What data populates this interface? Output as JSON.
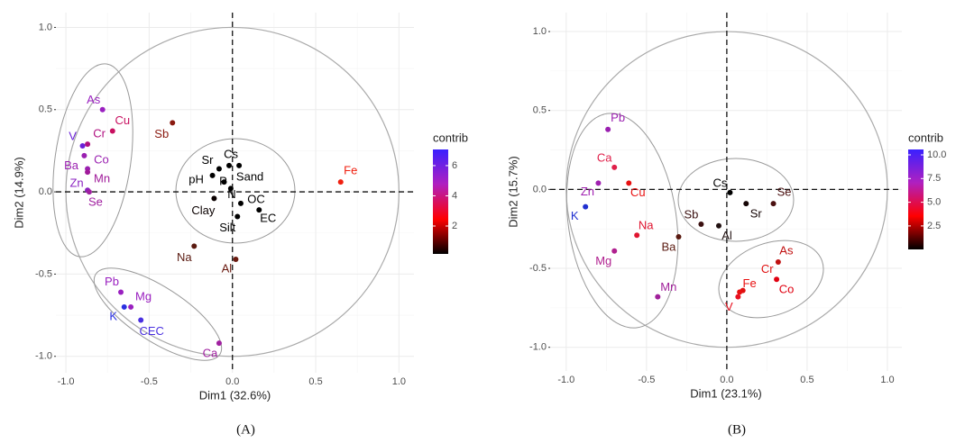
{
  "chart_data": [
    {
      "type": "scatter",
      "caption": "(A)",
      "x_label": "Dim1 (32.6%)",
      "y_label": "Dim2 (14.9%)",
      "xlim": [
        -1.06,
        1.09
      ],
      "ylim": [
        -1.1,
        1.09
      ],
      "xticks": [
        {
          "value": -1,
          "label": "-1.0"
        },
        -0.5,
        {
          "value": 0,
          "label": "0.0"
        },
        0.5,
        {
          "value": 1,
          "label": "1.0"
        }
      ],
      "yticks": [
        {
          "value": -1,
          "label": "-1.0"
        },
        -0.5,
        {
          "value": 0,
          "label": "0.0"
        },
        0.5,
        {
          "value": 1,
          "label": "1.0"
        }
      ],
      "labels": [
        "As",
        "Cu",
        "Cr",
        "V",
        "Co",
        "Ba",
        "Mn",
        "Zn",
        "Se",
        "Sb",
        "Fe",
        "Cs",
        "Sr",
        "Sand",
        "pH",
        "P",
        "N",
        "Clay",
        "OC",
        "EC",
        "Silt",
        "Na",
        "Al",
        "Pb",
        "Mg",
        "K",
        "CEC",
        "Ca"
      ],
      "x": [
        -0.78,
        -0.72,
        -0.87,
        -0.9,
        -0.89,
        -0.87,
        -0.87,
        -0.87,
        -0.86,
        -0.36,
        0.65,
        -0.02,
        -0.08,
        0.04,
        -0.12,
        -0.05,
        -0.01,
        -0.11,
        0.05,
        0.16,
        0.03,
        -0.23,
        0.02,
        -0.67,
        -0.61,
        -0.65,
        -0.55,
        -0.08
      ],
      "values": [
        0.5,
        0.37,
        0.29,
        0.28,
        0.22,
        0.14,
        0.12,
        0.01,
        0.0,
        0.42,
        0.06,
        0.16,
        0.14,
        0.16,
        0.1,
        0.06,
        0.02,
        -0.04,
        -0.07,
        -0.11,
        -0.15,
        -0.33,
        -0.41,
        -0.61,
        -0.7,
        -0.7,
        -0.78,
        -0.92
      ],
      "colors": [
        "#9a20c0",
        "#c81060",
        "#b01080",
        "#6a20d8",
        "#9a20b0",
        "#9a20b0",
        "#a01a9a",
        "#8a20c0",
        "#a020a0",
        "#8a1a10",
        "#f02010",
        "#000000",
        "#000000",
        "#000000",
        "#000000",
        "#000000",
        "#000000",
        "#0a0000",
        "#000000",
        "#000000",
        "#000000",
        "#5a1a10",
        "#6a1a10",
        "#9a20c0",
        "#9a20c0",
        "#2a30e0",
        "#4a30e0",
        "#a020a0"
      ],
      "colorbar_title": "contrib",
      "colorbar_lim": [
        0.15,
        7.07
      ],
      "colorbar_ticks": [
        2,
        4,
        6
      ],
      "colorbar_colors": [
        "#000000",
        "#ff0000",
        "#b020c0",
        "#3a20ff"
      ]
    },
    {
      "type": "scatter",
      "caption": "(B)",
      "x_label": "Dim1 (23.1%)",
      "y_label": "Dim2 (15.7%)",
      "xlim": [
        -1.1,
        1.09
      ],
      "ylim": [
        -1.15,
        1.12
      ],
      "xticks": [
        {
          "value": -1,
          "label": "-1.0"
        },
        -0.5,
        {
          "value": 0,
          "label": "0.0"
        },
        0.5,
        {
          "value": 1,
          "label": "1.0"
        }
      ],
      "yticks": [
        {
          "value": -1,
          "label": "-1.0"
        },
        -0.5,
        {
          "value": 0,
          "label": "0.0"
        },
        0.5,
        {
          "value": 1,
          "label": "1.0"
        }
      ],
      "labels": [
        "Pb",
        "Ca",
        "Zn",
        "Cu",
        "K",
        "Na",
        "Mg",
        "Mn",
        "Ba",
        "Sb",
        "Al",
        "Cs",
        "Sr",
        "Se",
        "As",
        "Co",
        "Cr",
        "Fe",
        "V"
      ],
      "x": [
        -0.74,
        -0.7,
        -0.8,
        -0.61,
        -0.88,
        -0.56,
        -0.7,
        -0.43,
        -0.3,
        -0.16,
        -0.05,
        0.02,
        0.12,
        0.29,
        0.32,
        0.31,
        0.1,
        0.08,
        0.07
      ],
      "values": [
        0.38,
        0.14,
        0.04,
        0.04,
        -0.11,
        -0.29,
        -0.39,
        -0.68,
        -0.3,
        -0.22,
        -0.23,
        -0.02,
        -0.09,
        -0.09,
        -0.46,
        -0.57,
        -0.64,
        -0.65,
        -0.68
      ],
      "colors": [
        "#9a1fb0",
        "#e0204a",
        "#a020b0",
        "#e81010",
        "#2030d0",
        "#e01530",
        "#b0208f",
        "#a0209a",
        "#5a1a10",
        "#3a1010",
        "#201010",
        "#000000",
        "#150505",
        "#4a1010",
        "#c01010",
        "#e00010",
        "#e01010",
        "#e81010",
        "#e81020"
      ],
      "colorbar_title": "contrib",
      "colorbar_lim": [
        0.02,
        10.57
      ],
      "colorbar_ticks": [
        2.5,
        {
          "value": 5,
          "label": "5.0"
        },
        7.5,
        {
          "value": 10,
          "label": "10.0"
        }
      ],
      "colorbar_colors": [
        "#000000",
        "#ff0000",
        "#b020c0",
        "#3a20ff"
      ]
    }
  ]
}
